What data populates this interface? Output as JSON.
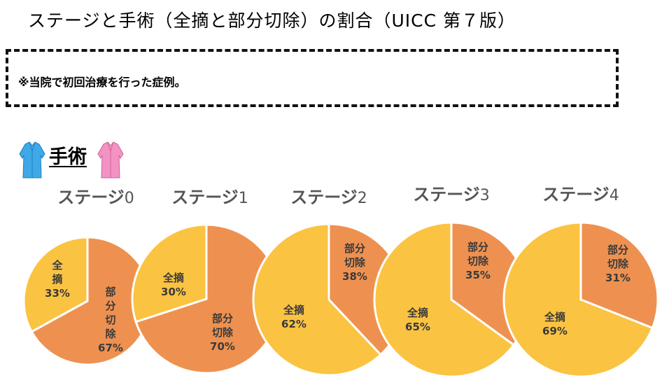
{
  "title": "ステージと手術（全摘と部分切除）の割合（UICC 第７版）",
  "note": "※当院で初回治療を行った症例。",
  "section": {
    "label": "手術",
    "icons": [
      "blue-surgical-gown-icon",
      "pink-surgical-gown-icon"
    ]
  },
  "colors": {
    "total": "#fbc342",
    "partial": "#ee9150",
    "border": "#ffffff"
  },
  "chart_data": [
    {
      "type": "pie",
      "title": "ステージ0",
      "title_prefix": "ステージ",
      "title_num": "0",
      "slices": [
        {
          "label": "全摘",
          "value": 33,
          "label_lines": [
            "全",
            "摘"
          ],
          "pct": "33%"
        },
        {
          "label": "部分切除",
          "value": 67,
          "label_lines": [
            "部",
            "分",
            "切",
            "除"
          ],
          "pct": "67%"
        }
      ]
    },
    {
      "type": "pie",
      "title": "ステージ1",
      "title_prefix": "ステージ",
      "title_num": "1",
      "slices": [
        {
          "label": "全摘",
          "value": 30,
          "label_lines": [
            "全摘"
          ],
          "pct": "30%"
        },
        {
          "label": "部分切除",
          "value": 70,
          "label_lines": [
            "部分",
            "切除"
          ],
          "pct": "70%"
        }
      ]
    },
    {
      "type": "pie",
      "title": "ステージ2",
      "title_prefix": "ステージ",
      "title_num": "2",
      "slices": [
        {
          "label": "全摘",
          "value": 62,
          "label_lines": [
            "全摘"
          ],
          "pct": "62%"
        },
        {
          "label": "部分切除",
          "value": 38,
          "label_lines": [
            "部分",
            "切除"
          ],
          "pct": "38%"
        }
      ]
    },
    {
      "type": "pie",
      "title": "ステージ3",
      "title_prefix": "ステージ",
      "title_num": "3",
      "slices": [
        {
          "label": "全摘",
          "value": 65,
          "label_lines": [
            "全摘"
          ],
          "pct": "65%"
        },
        {
          "label": "部分切除",
          "value": 35,
          "label_lines": [
            "部分",
            "切除"
          ],
          "pct": "35%"
        }
      ]
    },
    {
      "type": "pie",
      "title": "ステージ4",
      "title_prefix": "ステージ",
      "title_num": "4",
      "slices": [
        {
          "label": "全摘",
          "value": 69,
          "label_lines": [
            "全摘"
          ],
          "pct": "69%"
        },
        {
          "label": "部分切除",
          "value": 31,
          "label_lines": [
            "部分",
            "切除"
          ],
          "pct": "31%"
        }
      ]
    }
  ]
}
